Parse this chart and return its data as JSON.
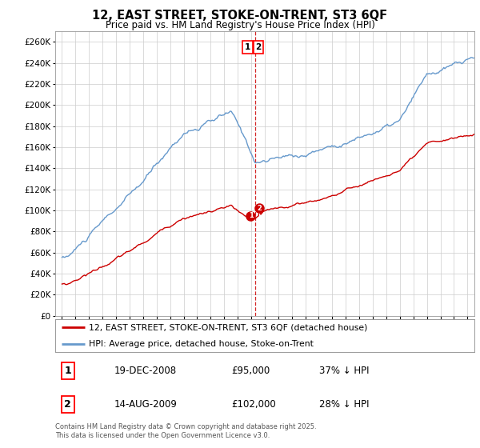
{
  "title": "12, EAST STREET, STOKE-ON-TRENT, ST3 6QF",
  "subtitle": "Price paid vs. HM Land Registry's House Price Index (HPI)",
  "legend_line1": "12, EAST STREET, STOKE-ON-TRENT, ST3 6QF (detached house)",
  "legend_line2": "HPI: Average price, detached house, Stoke-on-Trent",
  "annotation1_label": "1",
  "annotation1_date": "19-DEC-2008",
  "annotation1_price": "£95,000",
  "annotation1_hpi": "37% ↓ HPI",
  "annotation2_label": "2",
  "annotation2_date": "14-AUG-2009",
  "annotation2_price": "£102,000",
  "annotation2_hpi": "28% ↓ HPI",
  "footer": "Contains HM Land Registry data © Crown copyright and database right 2025.\nThis data is licensed under the Open Government Licence v3.0.",
  "hpi_color": "#6699cc",
  "price_color": "#cc0000",
  "dashed_line_color": "#cc0000",
  "background_color": "#ffffff",
  "grid_color": "#cccccc",
  "ylim": [
    0,
    270000
  ],
  "yticks": [
    0,
    20000,
    40000,
    60000,
    80000,
    100000,
    120000,
    140000,
    160000,
    180000,
    200000,
    220000,
    240000,
    260000
  ],
  "sale1_x": 2008.97,
  "sale1_y": 95000,
  "sale2_x": 2009.62,
  "sale2_y": 102000,
  "vline_x": 2009.3,
  "xlim": [
    1994.5,
    2025.5
  ]
}
